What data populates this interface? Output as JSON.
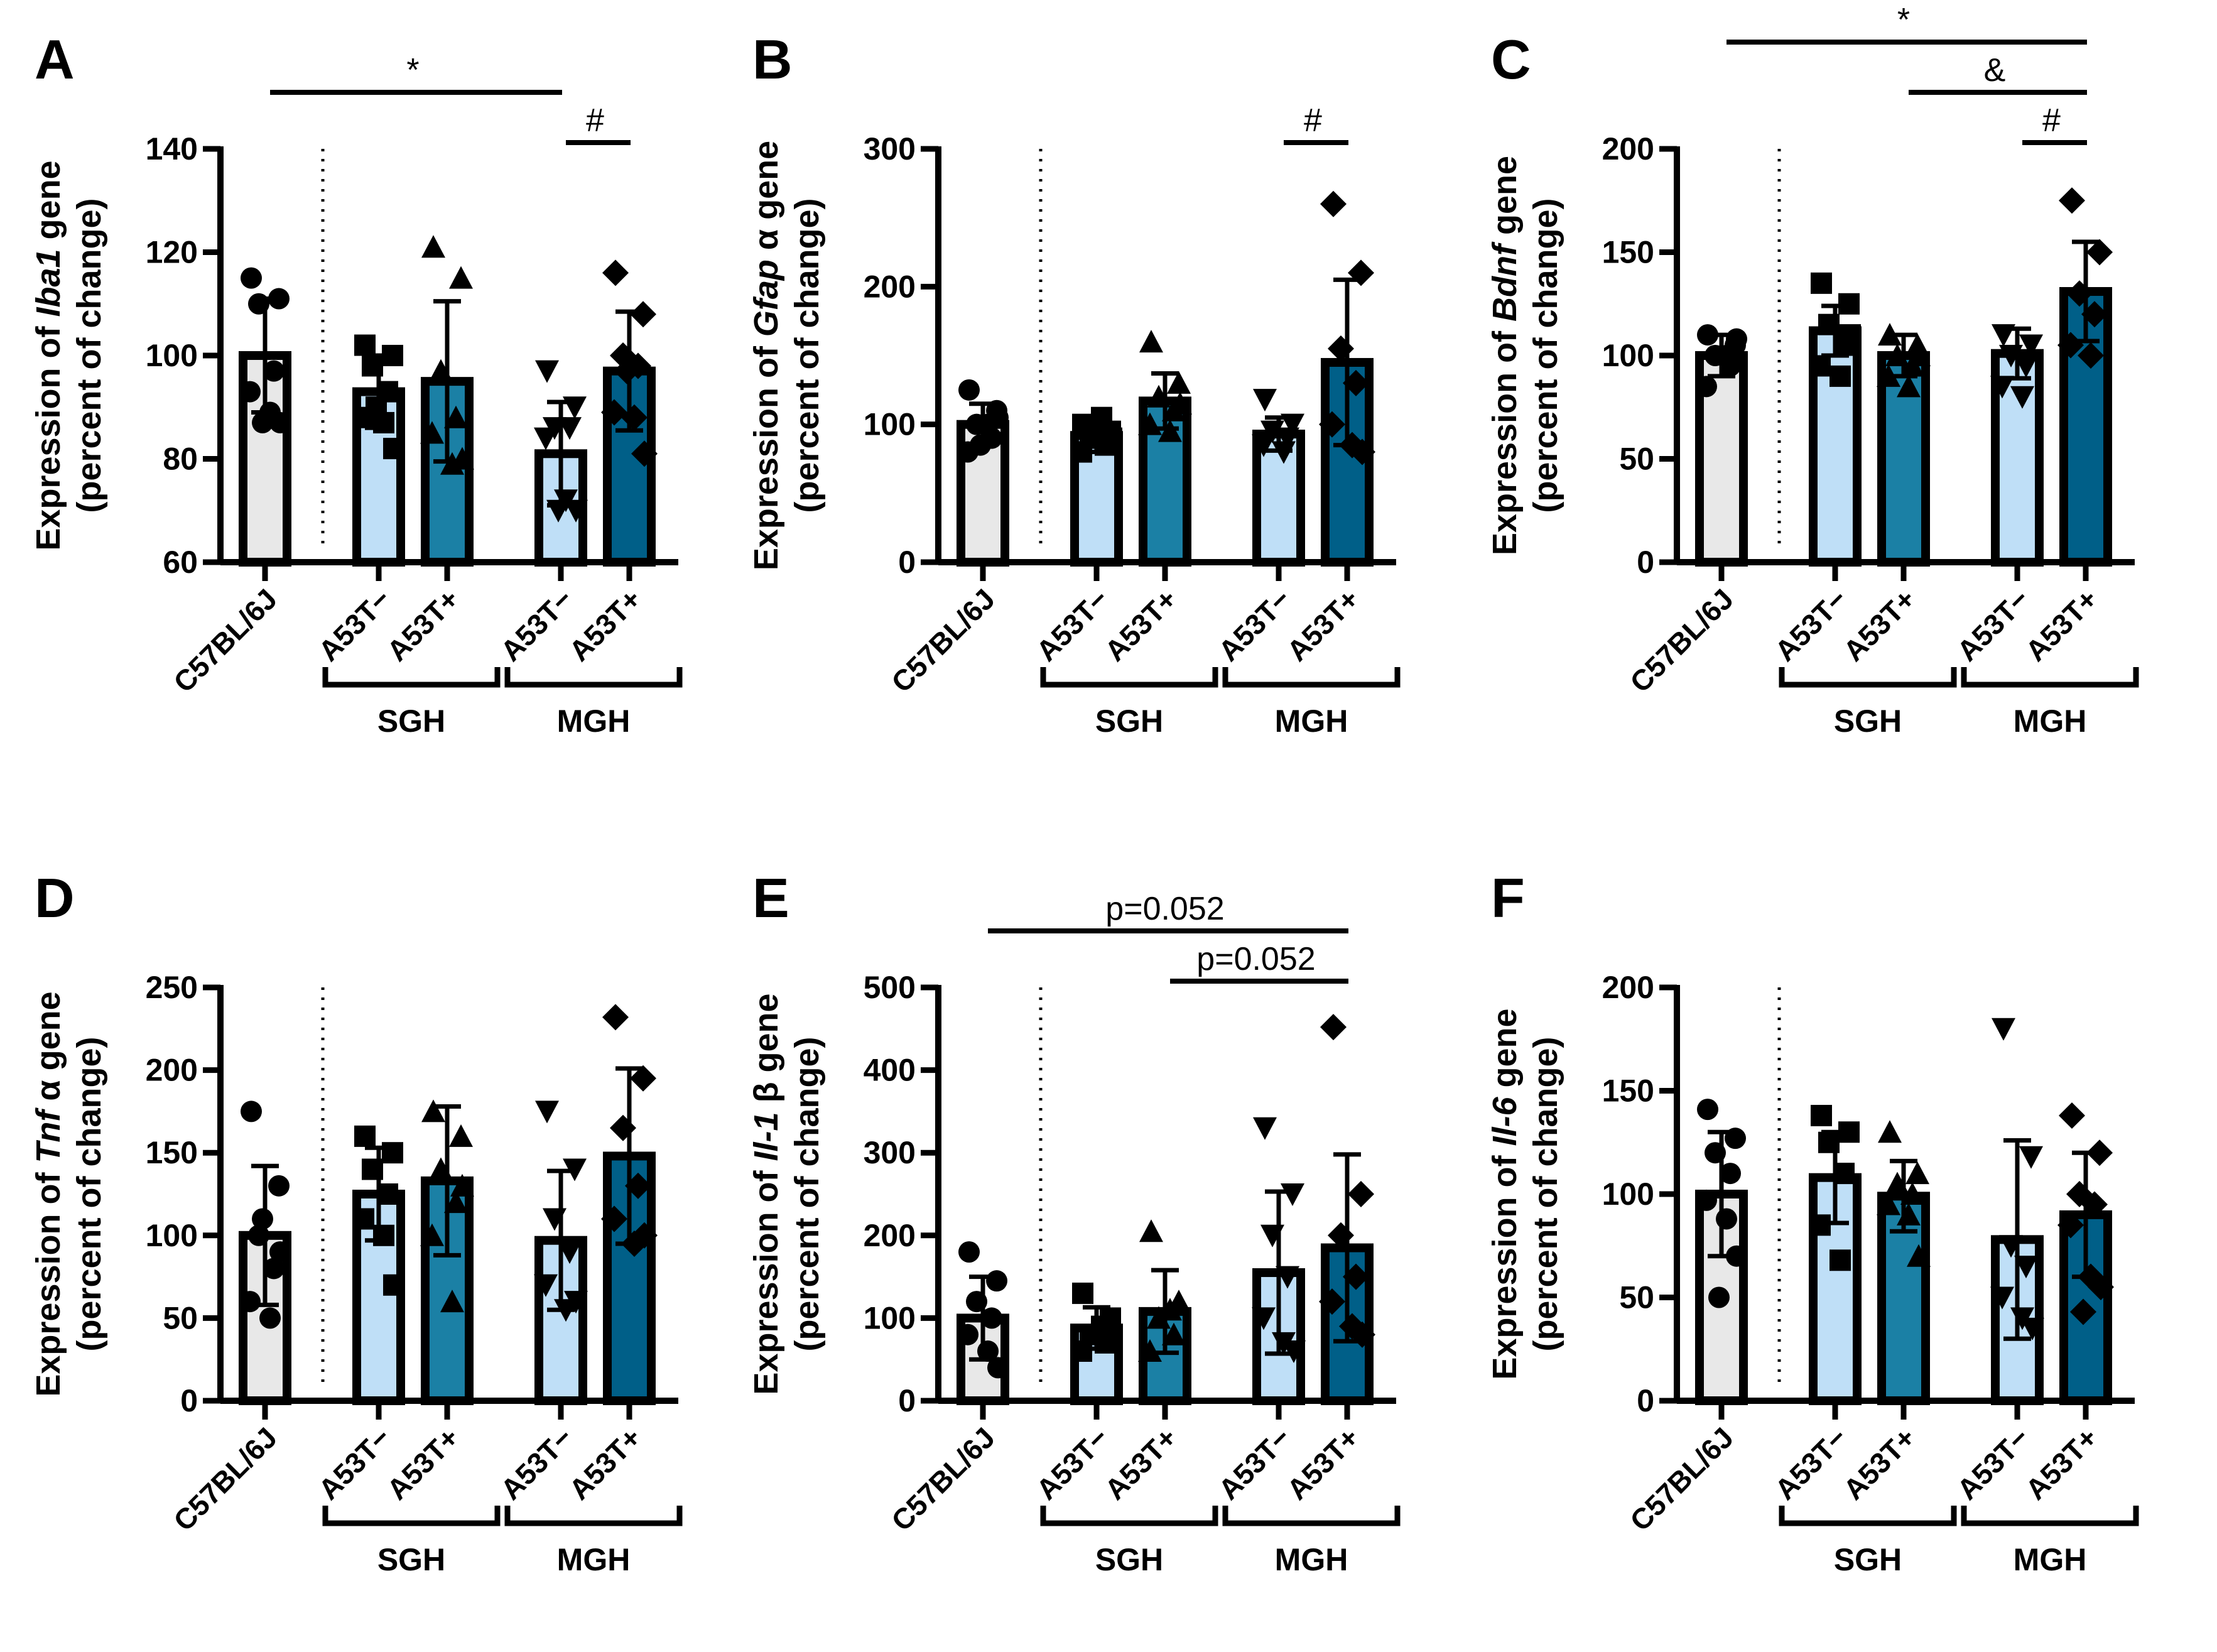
{
  "chart_data": {
    "type": "bar",
    "categories": [
      "C57BL/6J",
      "A53T−",
      "A53T+",
      "A53T−",
      "A53T+"
    ],
    "groups": [
      {
        "label": "SGH",
        "members": [
          1,
          2
        ]
      },
      {
        "label": "MGH",
        "members": [
          3,
          4
        ]
      }
    ],
    "bar_colors": [
      "#e8e8e8",
      "#bfdff7",
      "#1b80a5",
      "#bfdff7",
      "#005f88"
    ],
    "markers": [
      "circle",
      "square",
      "triangle",
      "triangle-down",
      "diamond"
    ],
    "ylabel_line2": "(percent of change)",
    "panels": [
      {
        "letter": "A",
        "ylabel": {
          "prefix": "Expression of ",
          "gene": "Iba1",
          "suffix": " gene"
        },
        "ylim": [
          60,
          140
        ],
        "yticks": [
          60,
          80,
          100,
          120,
          140
        ],
        "means": [
          100,
          93,
          95,
          81,
          97
        ],
        "sd": [
          11,
          7,
          15.5,
          10,
          11.5
        ],
        "points": [
          [
            115,
            111,
            110,
            97,
            93,
            89,
            87,
            87
          ],
          [
            102,
            100,
            98,
            93,
            88,
            87,
            82,
            90
          ],
          [
            121,
            115,
            97,
            88,
            85,
            79,
            80
          ],
          [
            97,
            90,
            86,
            86,
            84,
            72,
            70,
            70
          ],
          [
            116,
            108,
            100,
            98,
            89,
            88,
            81,
            97
          ]
        ],
        "significance": [
          {
            "from": 0,
            "to": 3,
            "label": "*",
            "level": 1
          },
          {
            "from": 3,
            "to": 4,
            "label": "#",
            "level": 0
          }
        ]
      },
      {
        "letter": "B",
        "ylabel": {
          "prefix": "Expression of ",
          "gene": "Gfap",
          "suffix": " α gene"
        },
        "ylim": [
          0,
          300
        ],
        "yticks": [
          0,
          100,
          200,
          300
        ],
        "means": [
          100,
          92,
          117,
          93,
          145
        ],
        "sd": [
          15,
          12,
          20,
          12,
          60
        ],
        "points": [
          [
            125,
            110,
            100,
            90,
            80,
            100,
            105,
            85
          ],
          [
            100,
            95,
            90,
            85,
            80,
            105,
            90
          ],
          [
            160,
            130,
            120,
            110,
            100,
            95,
            115
          ],
          [
            118,
            100,
            95,
            90,
            85,
            80
          ],
          [
            260,
            210,
            155,
            130,
            100,
            85,
            80
          ]
        ],
        "significance": [
          {
            "from": 3,
            "to": 4,
            "label": "#",
            "level": 0
          }
        ]
      },
      {
        "letter": "C",
        "ylabel": {
          "prefix": "Expression of ",
          "gene": "Bdnf",
          "suffix": " gene"
        },
        "ylim": [
          0,
          200
        ],
        "yticks": [
          0,
          50,
          100,
          150,
          200
        ],
        "means": [
          100,
          112,
          100,
          101,
          131
        ],
        "sd": [
          10,
          12,
          10,
          12,
          24
        ],
        "points": [
          [
            110,
            105,
            100,
            95,
            85,
            100,
            108
          ],
          [
            135,
            125,
            115,
            105,
            95,
            90,
            110
          ],
          [
            110,
            105,
            100,
            95,
            90,
            85,
            100
          ],
          [
            110,
            105,
            100,
            95,
            85,
            80
          ],
          [
            175,
            150,
            130,
            120,
            105,
            100
          ]
        ],
        "significance": [
          {
            "from": 0,
            "to": 4,
            "label": "*",
            "level": 2
          },
          {
            "from": 2,
            "to": 4,
            "label": "&",
            "level": 1
          },
          {
            "from": 3,
            "to": 4,
            "label": "#",
            "level": 0
          }
        ]
      },
      {
        "letter": "D",
        "ylabel": {
          "prefix": "Expression of ",
          "gene": "Tnf",
          "suffix": " α gene"
        },
        "ylim": [
          0,
          250
        ],
        "yticks": [
          0,
          50,
          100,
          150,
          200,
          250
        ],
        "means": [
          100,
          125,
          133,
          97,
          148
        ],
        "sd": [
          42,
          28,
          45,
          42,
          53
        ],
        "points": [
          [
            175,
            130,
            100,
            80,
            60,
            50,
            90,
            110
          ],
          [
            160,
            150,
            140,
            125,
            110,
            100,
            70
          ],
          [
            175,
            160,
            140,
            120,
            100,
            60,
            130
          ],
          [
            175,
            140,
            110,
            90,
            70,
            55,
            60
          ],
          [
            232,
            195,
            165,
            130,
            110,
            95,
            100
          ]
        ],
        "significance": []
      },
      {
        "letter": "E",
        "ylabel": {
          "prefix": "Expression of ",
          "gene": "Il-1",
          "suffix": " β gene"
        },
        "ylim": [
          0,
          500
        ],
        "yticks": [
          0,
          100,
          200,
          300,
          400,
          500
        ],
        "means": [
          100,
          88,
          108,
          155,
          185
        ],
        "sd": [
          50,
          25,
          50,
          98,
          113
        ],
        "points": [
          [
            180,
            145,
            120,
            100,
            80,
            60,
            40
          ],
          [
            130,
            100,
            80,
            70,
            60,
            90
          ],
          [
            205,
            120,
            100,
            80,
            60,
            110
          ],
          [
            330,
            250,
            200,
            150,
            100,
            70,
            60
          ],
          [
            452,
            250,
            200,
            150,
            120,
            90,
            80
          ]
        ],
        "significance": [
          {
            "from": 0,
            "to": 4,
            "label": "p=0.052",
            "level": 1
          },
          {
            "from": 2,
            "to": 4,
            "label": "p=0.052",
            "level": 0
          }
        ]
      },
      {
        "letter": "F",
        "ylabel": {
          "prefix": "Expression of ",
          "gene": "Il-6",
          "suffix": " gene"
        },
        "ylim": [
          0,
          200
        ],
        "yticks": [
          0,
          50,
          100,
          150,
          200
        ],
        "means": [
          100,
          108,
          99,
          78,
          90
        ],
        "sd": [
          30,
          22,
          17,
          48,
          30
        ],
        "points": [
          [
            141,
            127,
            120,
            110,
            97,
            88,
            70,
            50
          ],
          [
            138,
            130,
            125,
            110,
            85,
            68
          ],
          [
            130,
            110,
            105,
            100,
            95,
            90,
            70
          ],
          [
            180,
            118,
            75,
            65,
            50,
            40,
            35
          ],
          [
            138,
            120,
            100,
            95,
            85,
            60,
            55,
            43
          ]
        ],
        "significance": []
      }
    ]
  }
}
